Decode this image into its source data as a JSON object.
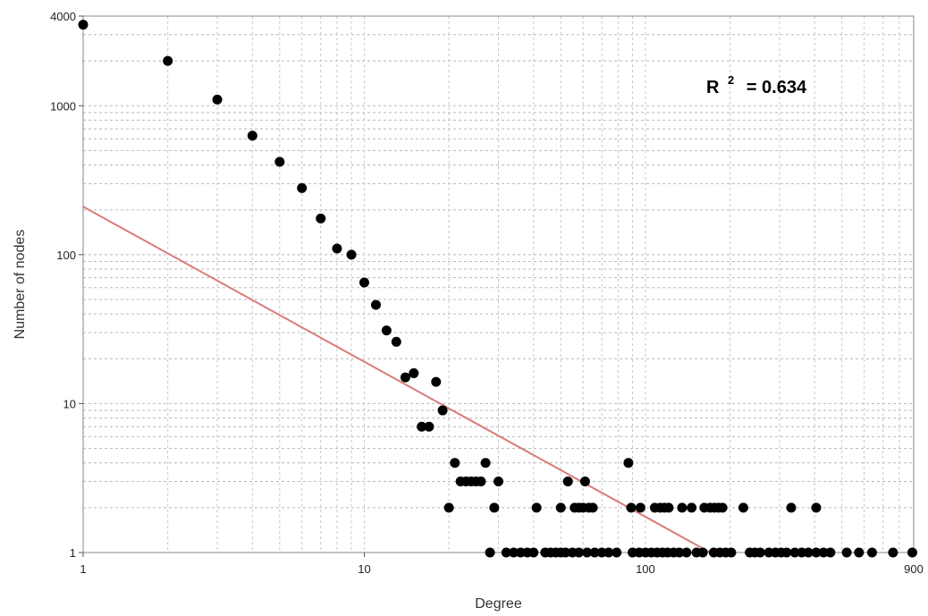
{
  "chart_data": {
    "type": "scatter",
    "title": "",
    "xlabel": "Degree",
    "ylabel": "Number of nodes",
    "x_scale": "log",
    "y_scale": "log",
    "xlim": [
      1,
      900
    ],
    "ylim": [
      1,
      4000
    ],
    "x_ticks": [
      {
        "value": 1,
        "label": "1"
      },
      {
        "value": 10,
        "label": "10"
      },
      {
        "value": 100,
        "label": "100"
      },
      {
        "value": 900,
        "label": "900"
      }
    ],
    "y_ticks": [
      {
        "value": 1,
        "label": "1"
      },
      {
        "value": 10,
        "label": "10"
      },
      {
        "value": 100,
        "label": "100"
      },
      {
        "value": 1000,
        "label": "1000"
      },
      {
        "value": 4000,
        "label": "4000"
      }
    ],
    "grid": true,
    "annotation": {
      "r_label": "R",
      "superscript": "2",
      "value_text": "= 0.634",
      "placement": "top-right"
    },
    "points_color": "#000000",
    "fit_line": {
      "color": "#d97b7b",
      "x": [
        1,
        170
      ],
      "y": [
        210,
        1
      ]
    },
    "points": [
      [
        1,
        3500
      ],
      [
        2,
        2000
      ],
      [
        3,
        1100
      ],
      [
        4,
        630
      ],
      [
        5,
        420
      ],
      [
        6,
        280
      ],
      [
        7,
        175
      ],
      [
        8,
        110
      ],
      [
        9,
        100
      ],
      [
        10,
        65
      ],
      [
        11,
        46
      ],
      [
        12,
        31
      ],
      [
        13,
        26
      ],
      [
        14,
        15
      ],
      [
        15,
        16
      ],
      [
        16,
        7
      ],
      [
        17,
        7
      ],
      [
        18,
        14
      ],
      [
        19,
        9
      ],
      [
        20,
        2
      ],
      [
        21,
        4
      ],
      [
        22,
        3
      ],
      [
        23,
        3
      ],
      [
        24,
        3
      ],
      [
        25,
        3
      ],
      [
        26,
        3
      ],
      [
        27,
        4
      ],
      [
        29,
        2
      ],
      [
        30,
        3
      ],
      [
        41,
        2
      ],
      [
        50,
        2
      ],
      [
        53,
        3
      ],
      [
        56,
        2
      ],
      [
        58,
        2
      ],
      [
        60,
        2
      ],
      [
        61,
        3
      ],
      [
        63,
        2
      ],
      [
        65,
        2
      ],
      [
        87,
        4
      ],
      [
        89,
        2
      ],
      [
        96,
        2
      ],
      [
        108,
        2
      ],
      [
        113,
        2
      ],
      [
        117,
        2
      ],
      [
        121,
        2
      ],
      [
        135,
        2
      ],
      [
        146,
        2
      ],
      [
        162,
        2
      ],
      [
        170,
        2
      ],
      [
        176,
        2
      ],
      [
        182,
        2
      ],
      [
        188,
        2
      ],
      [
        223,
        2
      ],
      [
        330,
        2
      ],
      [
        405,
        2
      ],
      [
        28,
        1
      ],
      [
        32,
        1
      ],
      [
        34,
        1
      ],
      [
        36,
        1
      ],
      [
        38,
        1
      ],
      [
        40,
        1
      ],
      [
        44,
        1
      ],
      [
        46,
        1
      ],
      [
        48,
        1
      ],
      [
        50,
        1
      ],
      [
        52,
        1
      ],
      [
        55,
        1
      ],
      [
        58,
        1
      ],
      [
        62,
        1
      ],
      [
        66,
        1
      ],
      [
        70,
        1
      ],
      [
        74,
        1
      ],
      [
        79,
        1
      ],
      [
        90,
        1
      ],
      [
        95,
        1
      ],
      [
        100,
        1
      ],
      [
        105,
        1
      ],
      [
        110,
        1
      ],
      [
        115,
        1
      ],
      [
        120,
        1
      ],
      [
        126,
        1
      ],
      [
        132,
        1
      ],
      [
        140,
        1
      ],
      [
        152,
        1
      ],
      [
        160,
        1
      ],
      [
        175,
        1
      ],
      [
        184,
        1
      ],
      [
        193,
        1
      ],
      [
        202,
        1
      ],
      [
        235,
        1
      ],
      [
        245,
        1
      ],
      [
        256,
        1
      ],
      [
        275,
        1
      ],
      [
        290,
        1
      ],
      [
        304,
        1
      ],
      [
        318,
        1
      ],
      [
        340,
        1
      ],
      [
        360,
        1
      ],
      [
        380,
        1
      ],
      [
        405,
        1
      ],
      [
        430,
        1
      ],
      [
        455,
        1
      ],
      [
        520,
        1
      ],
      [
        575,
        1
      ],
      [
        640,
        1
      ],
      [
        760,
        1
      ],
      [
        890,
        1
      ]
    ]
  }
}
